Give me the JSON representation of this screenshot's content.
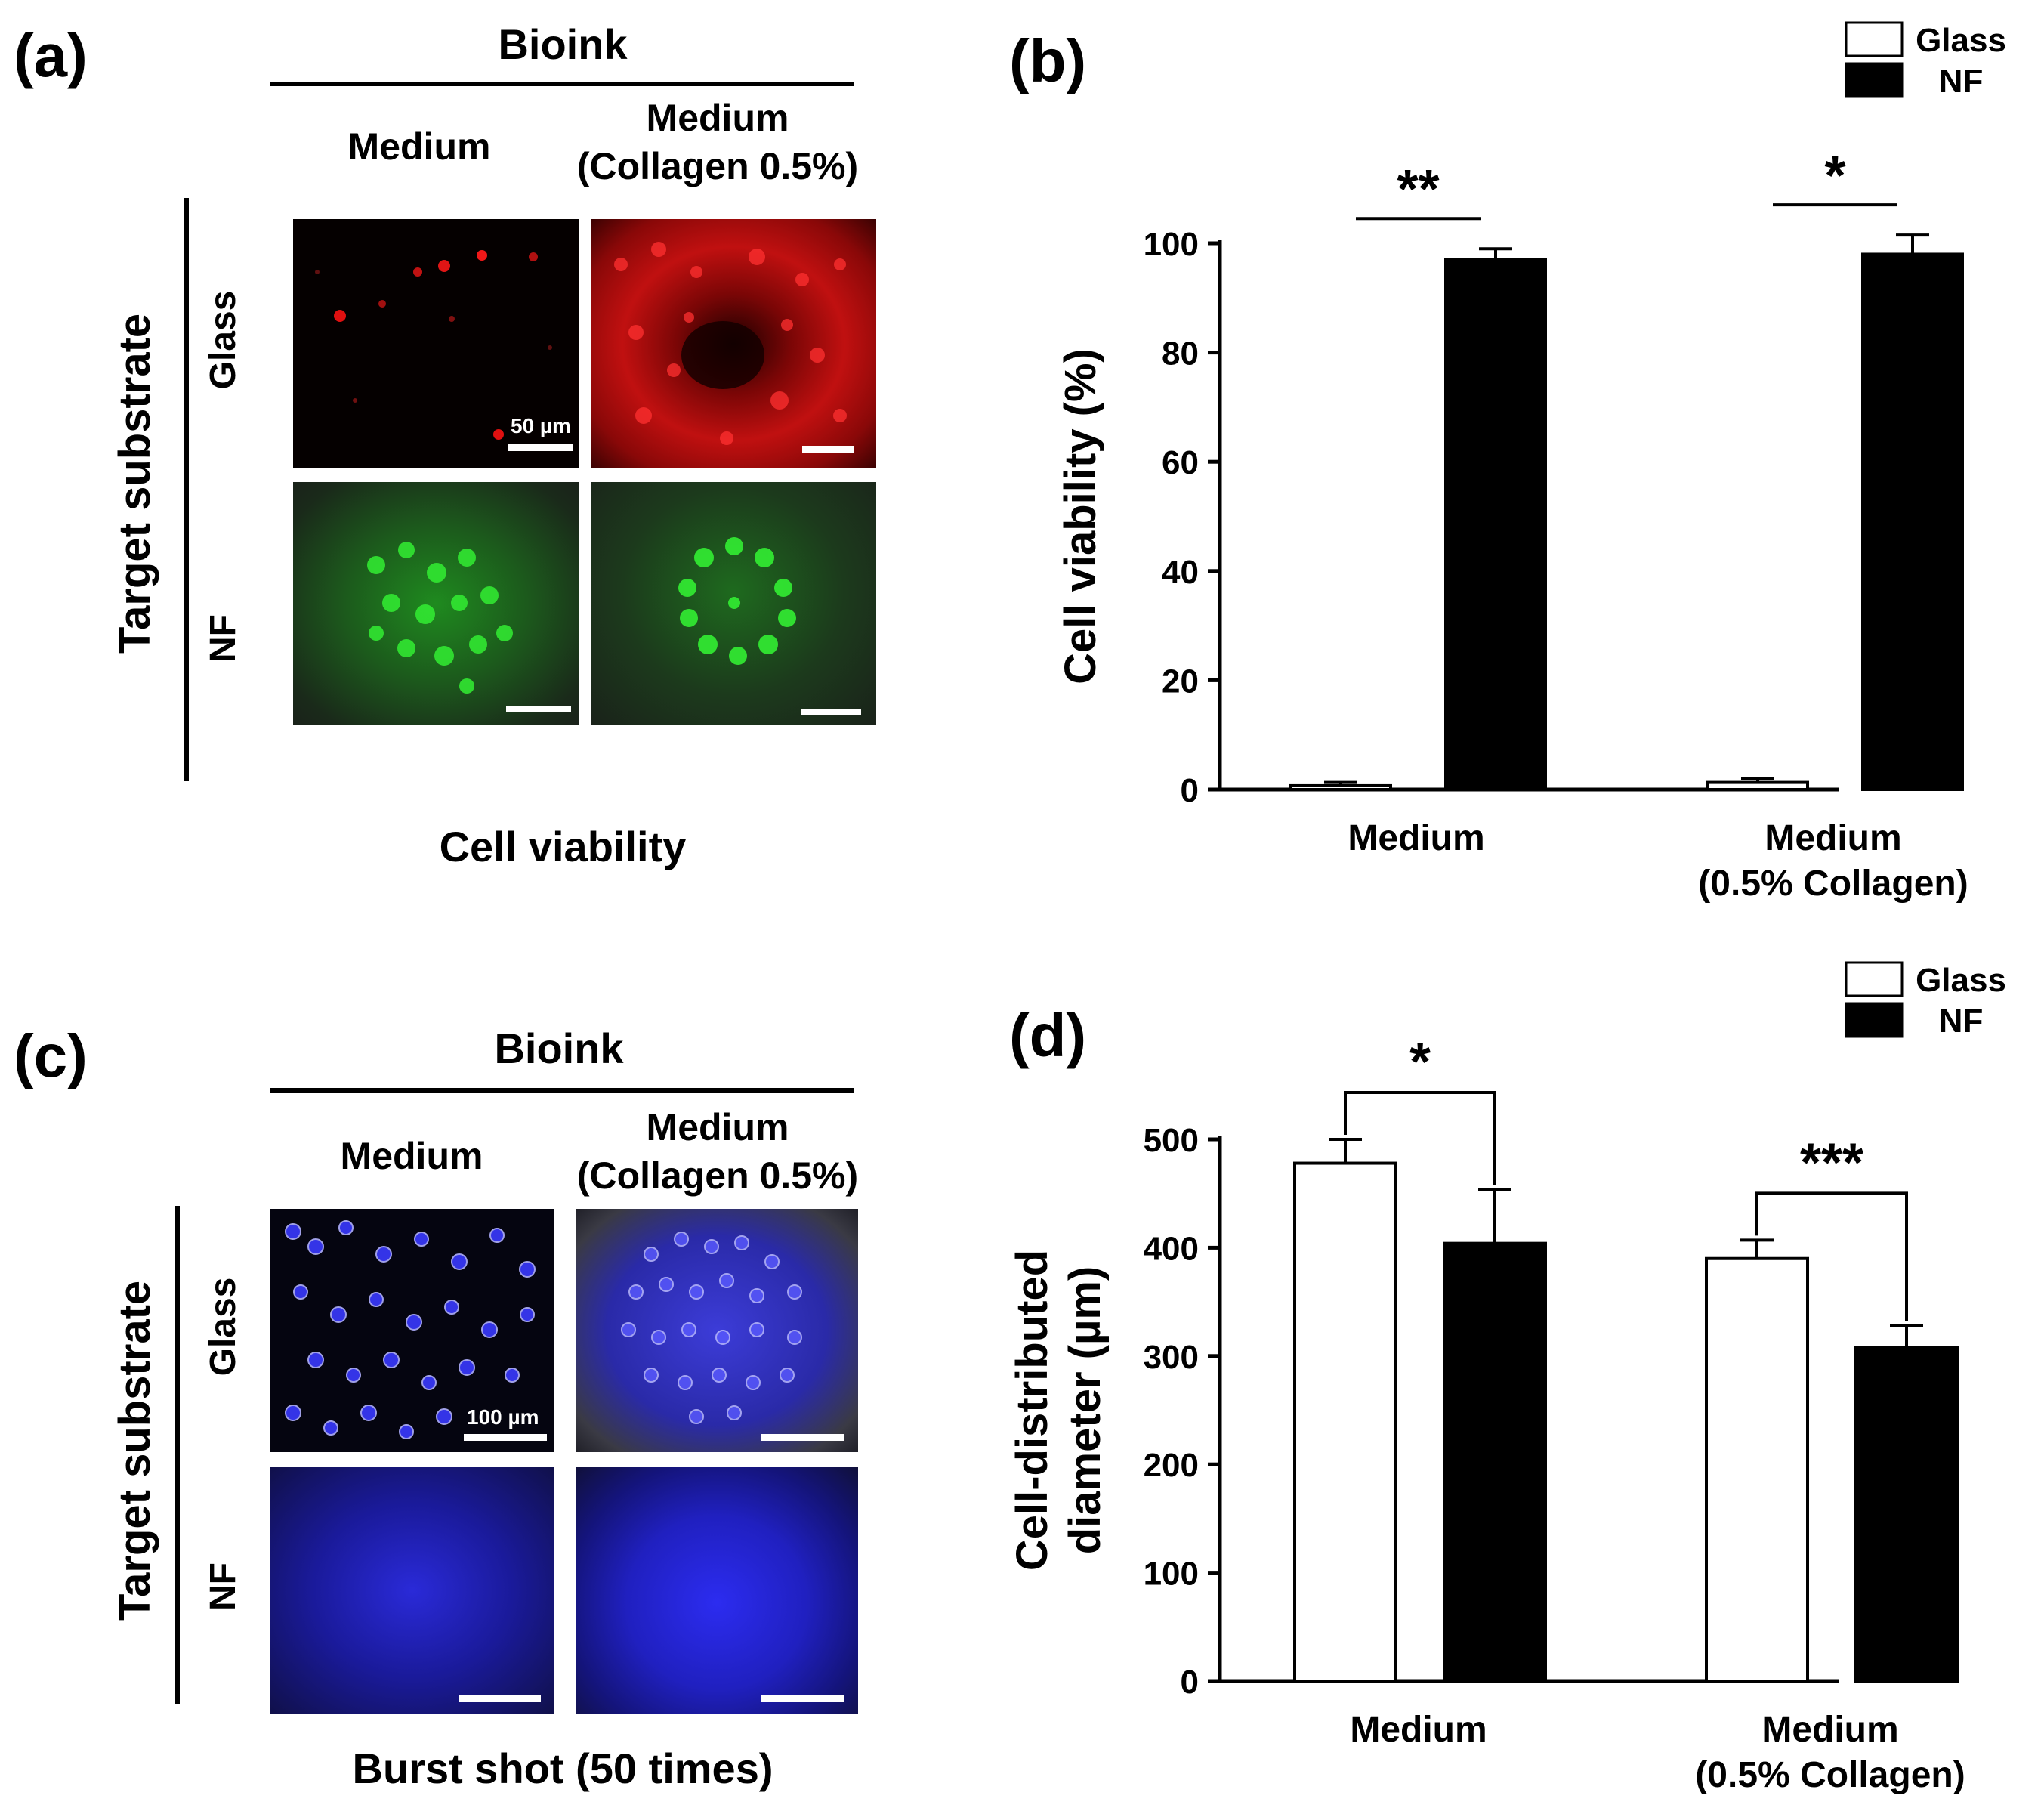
{
  "panel_a": {
    "label": "(a)",
    "header": "Bioink",
    "col1": "Medium",
    "col2": "Medium\n(Collagen 0.5%)",
    "side_label": "Target substrate",
    "row1": "Glass",
    "row2": "NF",
    "scale_text": "50 µm",
    "caption": "Cell viability"
  },
  "panel_c": {
    "label": "(c)",
    "header": "Bioink",
    "col1": "Medium",
    "col2": "Medium\n(Collagen 0.5%)",
    "side_label": "Target substrate",
    "row1": "Glass",
    "row2": "NF",
    "scale_text": "100 µm",
    "caption": "Burst shot (50 times)"
  },
  "colors": {
    "red_fluorescence": "#e01010",
    "green_fluorescence": "#22dd22",
    "blue_fluorescence": "#2a2af0",
    "nf_bar": "#000000",
    "glass_bar": "#ffffff"
  },
  "chart_data": [
    {
      "panel_label": "(b)",
      "type": "bar",
      "categories": [
        "Medium",
        "Medium\n(0.5% Collagen)"
      ],
      "series": [
        {
          "name": "Glass",
          "values": [
            0.7,
            1.3
          ],
          "errors": [
            0.6,
            0.7
          ],
          "fill": "#ffffff"
        },
        {
          "name": "NF",
          "values": [
            97.0,
            98.0
          ],
          "errors": [
            2.0,
            3.5
          ],
          "fill": "#000000"
        }
      ],
      "ylabel": "Cell viability (%)",
      "xlabel": "",
      "ylim": [
        0,
        100
      ],
      "yticks": [
        0,
        20,
        40,
        60,
        80,
        100
      ],
      "legend": "top-right",
      "significance": [
        {
          "category": 0,
          "mark": "**",
          "style": "line"
        },
        {
          "category": 1,
          "mark": "*",
          "style": "line"
        }
      ]
    },
    {
      "panel_label": "(d)",
      "type": "bar",
      "categories": [
        "Medium",
        "Medium\n(0.5% Collagen)"
      ],
      "series": [
        {
          "name": "Glass",
          "values": [
            478,
            390
          ],
          "errors": [
            22,
            17
          ],
          "fill": "#ffffff"
        },
        {
          "name": "NF",
          "values": [
            404,
            308
          ],
          "errors": [
            50,
            20
          ],
          "fill": "#000000"
        }
      ],
      "ylabel": "Cell-distributed\ndiameter (µm)",
      "xlabel": "",
      "ylim": [
        0,
        500
      ],
      "yticks": [
        0,
        100,
        200,
        300,
        400,
        500
      ],
      "legend": "top-right",
      "significance": [
        {
          "category": 0,
          "mark": "*",
          "style": "bracket"
        },
        {
          "category": 1,
          "mark": "***",
          "style": "bracket"
        }
      ]
    }
  ]
}
